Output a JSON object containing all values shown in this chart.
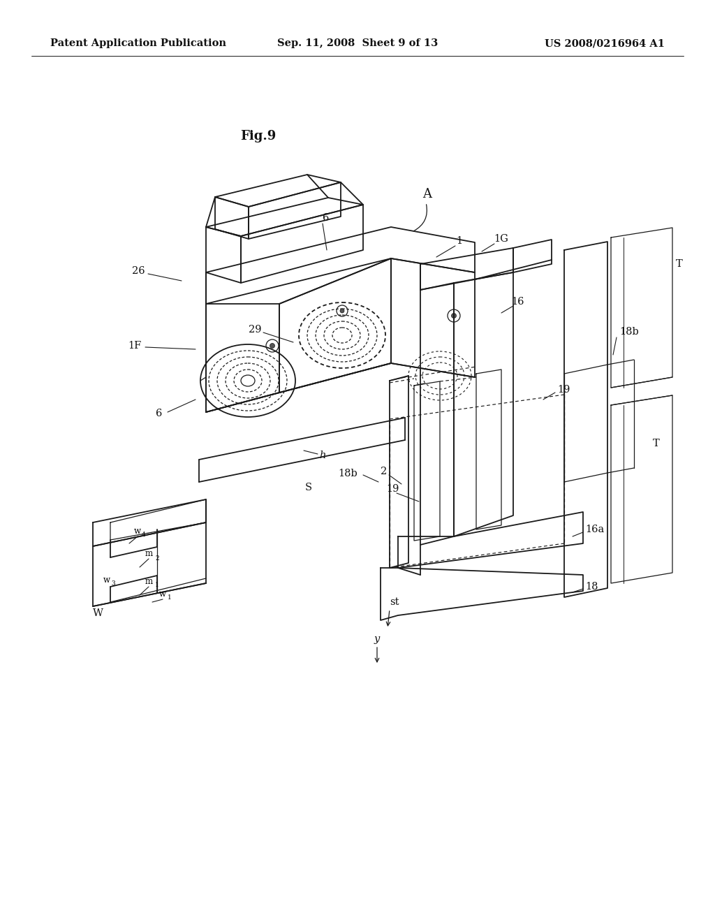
{
  "background_color": "#ffffff",
  "header_left": "Patent Application Publication",
  "header_center": "Sep. 11, 2008  Sheet 9 of 13",
  "header_right": "US 2008/0216964 A1",
  "fig_label": "Fig.9",
  "line_color": "#1a1a1a",
  "lw_main": 1.3,
  "lw_thin": 0.9,
  "lw_dash": 0.85,
  "label_fontsize": 10.5,
  "header_fontsize": 10.5,
  "fig_fontsize": 13
}
